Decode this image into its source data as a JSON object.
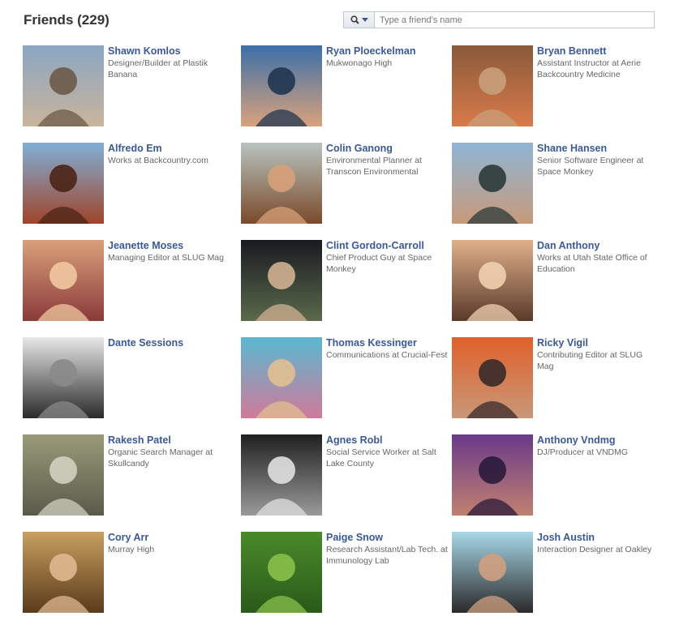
{
  "header": {
    "title": "Friends (229)"
  },
  "search": {
    "placeholder": "Type a friend's name",
    "value": "",
    "icon": "magnifier-icon",
    "dropdown_icon": "chevron-down-icon"
  },
  "colors": {
    "link": "#3b5998",
    "text_muted": "#666666",
    "title": "#333333",
    "border": "#bdc7d8"
  },
  "friends": [
    {
      "name": "Shawn Komlos",
      "desc": "Designer/Builder at Plastik Banana",
      "photo": [
        "#8aa6c4",
        "#c9b49a",
        "#6c5a48"
      ]
    },
    {
      "name": "Ryan Ploeckelman",
      "desc": "Mukwonago High",
      "photo": [
        "#3c6fa8",
        "#d9a27c",
        "#1f3550"
      ]
    },
    {
      "name": "Bryan Bennett",
      "desc": "Assistant Instructor at Aerie Backcountry Medicine",
      "photo": [
        "#8a5a3a",
        "#d97a4a",
        "#c8a07a"
      ]
    },
    {
      "name": "Alfredo Em",
      "desc": "Works at Backcountry.com",
      "photo": [
        "#7fb0d8",
        "#a0432a",
        "#4a2416"
      ]
    },
    {
      "name": "Colin Ganong",
      "desc": "Environmental Planner at Transcon Environmental",
      "photo": [
        "#b8c4c0",
        "#7a4a2a",
        "#d7a07a"
      ]
    },
    {
      "name": "Shane Hansen",
      "desc": "Senior Software Engineer at Space Monkey",
      "photo": [
        "#8fb5d5",
        "#c79a7a",
        "#2c3a3a"
      ]
    },
    {
      "name": "Jeanette Moses",
      "desc": "Managing Editor at SLUG Mag",
      "photo": [
        "#d9a07a",
        "#8a3a3a",
        "#f0c8a0"
      ]
    },
    {
      "name": "Clint Gordon-Carroll",
      "desc": "Chief Product Guy at Space Monkey",
      "photo": [
        "#1a1a22",
        "#5a6a4a",
        "#d0b090"
      ]
    },
    {
      "name": "Dan Anthony",
      "desc": "Works at Utah State Office of Education",
      "photo": [
        "#e0b08a",
        "#5a3a2a",
        "#f0d0b0"
      ]
    },
    {
      "name": "Dante Sessions",
      "desc": "",
      "photo": [
        "#e8e8e8",
        "#2a2a2a",
        "#8a8a8a"
      ]
    },
    {
      "name": "Thomas Kessinger",
      "desc": "Communications at Crucial-Fest",
      "photo": [
        "#5ab8d0",
        "#d07a9a",
        "#e0c090"
      ]
    },
    {
      "name": "Ricky Vigil",
      "desc": "Contributing Editor at SLUG Mag",
      "photo": [
        "#e0602a",
        "#c89878",
        "#3a2a2a"
      ]
    },
    {
      "name": "Rakesh Patel",
      "desc": "Organic Search Manager at Skullcandy",
      "photo": [
        "#9a9a7a",
        "#5a5a4a",
        "#d0d0c0"
      ]
    },
    {
      "name": "Agnes Robl",
      "desc": "Social Service Worker at Salt Lake County",
      "photo": [
        "#202020",
        "#9a9a9a",
        "#e0e0e0"
      ]
    },
    {
      "name": "Anthony Vndmg",
      "desc": "DJ/Producer at VNDMG",
      "photo": [
        "#6a3a8a",
        "#c08070",
        "#2a1a3a"
      ]
    },
    {
      "name": "Cory Arr",
      "desc": "Murray High",
      "photo": [
        "#c8a060",
        "#5a3a1a",
        "#e0b890"
      ]
    },
    {
      "name": "Paige Snow",
      "desc": "Research Assistant/Lab Tech. at Immunology Lab",
      "photo": [
        "#4a8a2a",
        "#2a5a1a",
        "#8ac04a"
      ]
    },
    {
      "name": "Josh Austin",
      "desc": "Interaction Designer at Oakley",
      "photo": [
        "#a8d8e8",
        "#2a2a2a",
        "#d0a080"
      ]
    }
  ]
}
